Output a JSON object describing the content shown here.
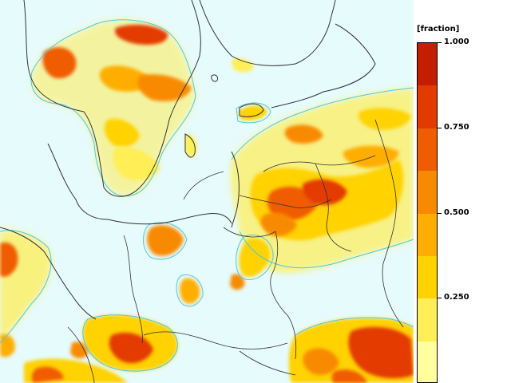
{
  "legend": {
    "title": "[fraction]",
    "ticks": [
      "1.000",
      "0.750",
      "0.500",
      "0.250"
    ],
    "tick_values": [
      1.0,
      0.75,
      0.5,
      0.25
    ],
    "range": [
      0.0,
      1.0
    ],
    "bands": [
      {
        "from": 0.875,
        "to": 1.0,
        "color": "#c41e00"
      },
      {
        "from": 0.75,
        "to": 0.875,
        "color": "#e33a00"
      },
      {
        "from": 0.625,
        "to": 0.75,
        "color": "#f05c00"
      },
      {
        "from": 0.5,
        "to": 0.625,
        "color": "#f88a00"
      },
      {
        "from": 0.375,
        "to": 0.5,
        "color": "#ffae00"
      },
      {
        "from": 0.25,
        "to": 0.375,
        "color": "#ffd200"
      },
      {
        "from": 0.125,
        "to": 0.25,
        "color": "#ffee55"
      },
      {
        "from": 0.0,
        "to": 0.125,
        "color": "#ffffa0"
      }
    ]
  },
  "colors": {
    "sea": "#e6fbfb",
    "contour": "#4ec8e0",
    "border": "#333333"
  }
}
